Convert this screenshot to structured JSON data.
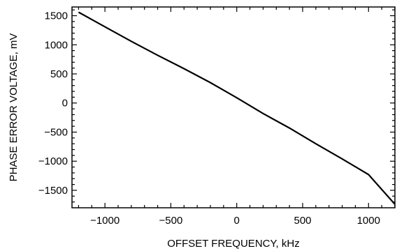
{
  "chart_data": {
    "type": "line",
    "title": "",
    "xlabel": "OFFSET FREQUENCY, kHz",
    "ylabel": "PHASE ERROR VOLTAGE, mV",
    "xlim": [
      -1250,
      1200
    ],
    "ylim": [
      -1800,
      1650
    ],
    "xticks": [
      -1000,
      -500,
      0,
      500,
      1000
    ],
    "xtick_labels": [
      "−1000",
      "−500",
      "0",
      "500",
      "1000"
    ],
    "yticks": [
      1500,
      1000,
      500,
      0,
      -500,
      -1000,
      -1500
    ],
    "ytick_labels": [
      "1500",
      "1000",
      "500",
      "0",
      "−500",
      "−1000",
      "−1500"
    ],
    "grid": false,
    "series": [
      {
        "x": [
          -1200,
          -1000,
          -800,
          -600,
          -400,
          -200,
          0,
          200,
          400,
          600,
          800,
          1000,
          1200
        ],
        "y": [
          1560,
          1310,
          1060,
          820,
          590,
          350,
          90,
          -180,
          -430,
          -700,
          -960,
          -1230,
          -1740
        ]
      }
    ],
    "color": "#000000"
  }
}
